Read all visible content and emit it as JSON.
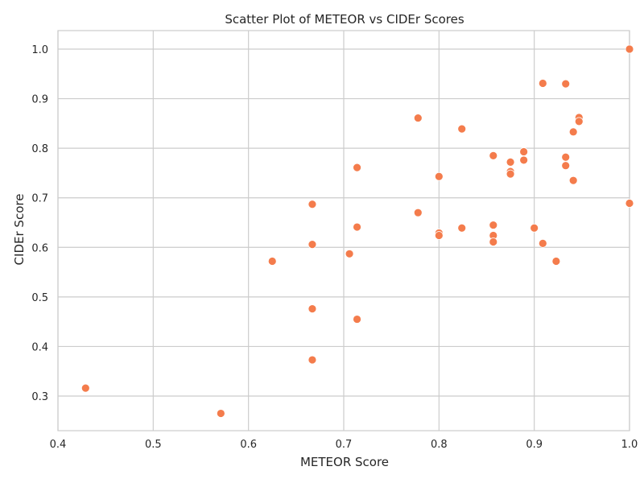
{
  "chart_data": {
    "type": "scatter",
    "title": "Scatter Plot of METEOR vs CIDEr Scores",
    "xlabel": "METEOR Score",
    "ylabel": "CIDEr Score",
    "xlim": [
      0.4,
      1.0
    ],
    "ylim": [
      0.25,
      1.0
    ],
    "xticks": [
      "0.4",
      "0.5",
      "0.6",
      "0.7",
      "0.8",
      "0.9",
      "1.0"
    ],
    "yticks": [
      "0.3",
      "0.4",
      "0.5",
      "0.6",
      "0.7",
      "0.8",
      "0.9",
      "1.0"
    ],
    "grid": true,
    "point_color": "#f47c4c",
    "points": [
      {
        "x": 0.429,
        "y": 0.316
      },
      {
        "x": 0.571,
        "y": 0.265
      },
      {
        "x": 0.625,
        "y": 0.572
      },
      {
        "x": 0.667,
        "y": 0.687
      },
      {
        "x": 0.667,
        "y": 0.606
      },
      {
        "x": 0.667,
        "y": 0.476
      },
      {
        "x": 0.667,
        "y": 0.373
      },
      {
        "x": 0.706,
        "y": 0.587
      },
      {
        "x": 0.714,
        "y": 0.761
      },
      {
        "x": 0.714,
        "y": 0.641
      },
      {
        "x": 0.714,
        "y": 0.455
      },
      {
        "x": 0.778,
        "y": 0.861
      },
      {
        "x": 0.778,
        "y": 0.67
      },
      {
        "x": 0.8,
        "y": 0.743
      },
      {
        "x": 0.8,
        "y": 0.629
      },
      {
        "x": 0.8,
        "y": 0.624
      },
      {
        "x": 0.824,
        "y": 0.839
      },
      {
        "x": 0.824,
        "y": 0.639
      },
      {
        "x": 0.857,
        "y": 0.785
      },
      {
        "x": 0.857,
        "y": 0.645
      },
      {
        "x": 0.857,
        "y": 0.624
      },
      {
        "x": 0.857,
        "y": 0.611
      },
      {
        "x": 0.875,
        "y": 0.772
      },
      {
        "x": 0.875,
        "y": 0.753
      },
      {
        "x": 0.875,
        "y": 0.748
      },
      {
        "x": 0.889,
        "y": 0.793
      },
      {
        "x": 0.889,
        "y": 0.776
      },
      {
        "x": 0.9,
        "y": 0.639
      },
      {
        "x": 0.909,
        "y": 0.931
      },
      {
        "x": 0.909,
        "y": 0.608
      },
      {
        "x": 0.923,
        "y": 0.572
      },
      {
        "x": 0.933,
        "y": 0.93
      },
      {
        "x": 0.933,
        "y": 0.782
      },
      {
        "x": 0.933,
        "y": 0.765
      },
      {
        "x": 0.941,
        "y": 0.833
      },
      {
        "x": 0.941,
        "y": 0.735
      },
      {
        "x": 0.947,
        "y": 0.862
      },
      {
        "x": 0.947,
        "y": 0.854
      },
      {
        "x": 1.0,
        "y": 1.0
      },
      {
        "x": 1.0,
        "y": 0.689
      }
    ]
  }
}
